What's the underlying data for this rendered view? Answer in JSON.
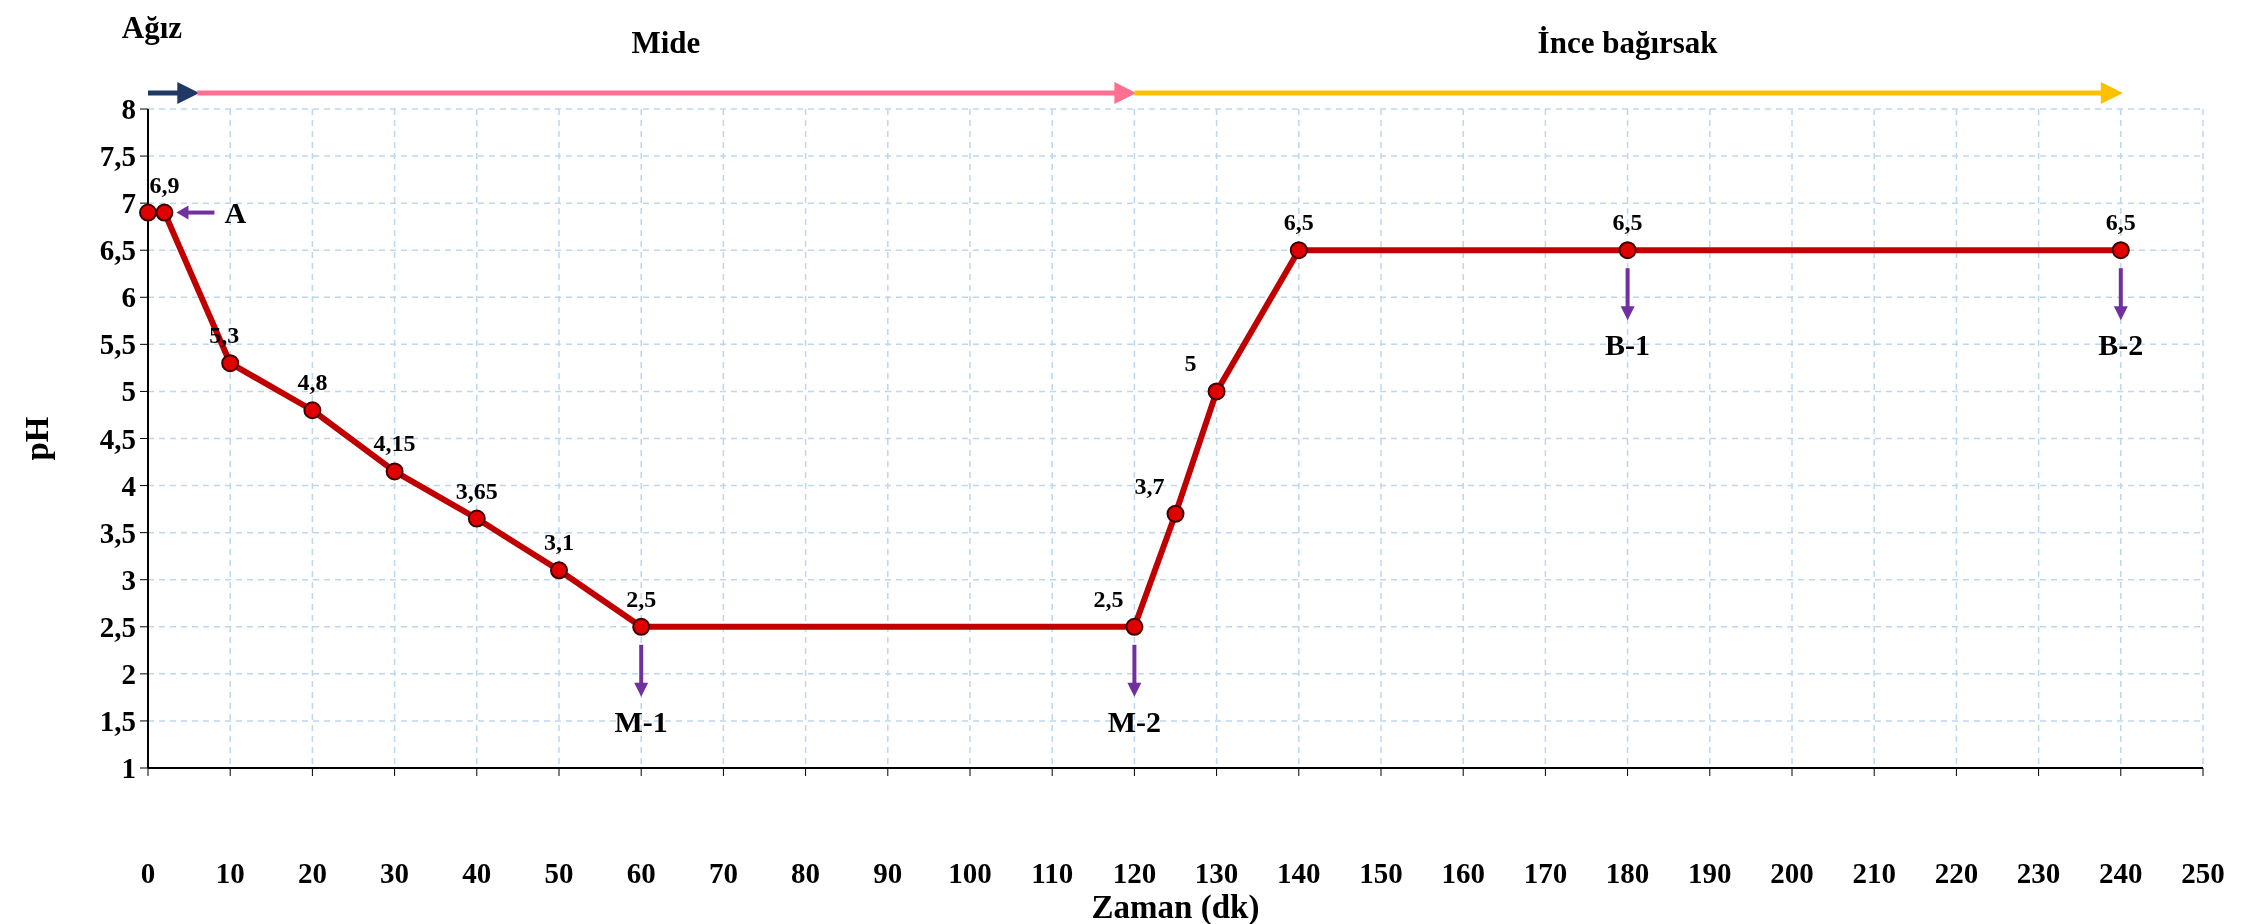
{
  "chart_data": {
    "type": "line",
    "xlabel": "Zaman (dk)",
    "ylabel": "pH",
    "x": [
      0,
      2,
      10,
      20,
      30,
      40,
      50,
      60,
      120,
      125,
      130,
      140,
      180,
      240
    ],
    "series": [
      {
        "color": "#c00000",
        "values": [
          6.9,
          6.9,
          5.3,
          4.8,
          4.15,
          3.65,
          3.1,
          2.5,
          2.5,
          3.7,
          5,
          6.5,
          6.5,
          6.5
        ],
        "value_labels": [
          null,
          "6,9",
          "5,3",
          "4,8",
          "4,15",
          "3,65",
          "3,1",
          "2,5",
          "2,5",
          "3,7",
          "5",
          "6,5",
          "6,5",
          "6,5"
        ]
      }
    ],
    "xlim": [
      0,
      250
    ],
    "xticks": [
      0,
      10,
      20,
      30,
      40,
      50,
      60,
      70,
      80,
      90,
      100,
      110,
      120,
      130,
      140,
      150,
      160,
      170,
      180,
      190,
      200,
      210,
      220,
      230,
      240,
      250
    ],
    "ylim": [
      1,
      8
    ],
    "yticks": [
      1,
      {
        "value": 1.5,
        "label": "1,5"
      },
      2,
      {
        "value": 2.5,
        "label": "2,5"
      },
      3,
      {
        "value": 3.5,
        "label": "3,5"
      },
      4,
      {
        "value": 4.5,
        "label": "4,5"
      },
      5,
      {
        "value": 5.5,
        "label": "5,5"
      },
      6,
      {
        "value": 6.5,
        "label": "6,5"
      },
      7,
      {
        "value": 7.5,
        "label": "7,5"
      },
      8
    ],
    "grid": true,
    "marker": "circle",
    "line_style": "solid",
    "annotations": [
      "Ağız",
      "Mide",
      "İnce bağırsak",
      {
        "text": "A",
        "x": 2,
        "y": 6.9
      },
      {
        "text": "M-1",
        "x": 60,
        "y": 2.5
      },
      {
        "text": "M-2",
        "x": 120,
        "y": 2.5
      },
      {
        "text": "B-1",
        "x": 180,
        "y": 6.5
      },
      {
        "text": "B-2",
        "x": 240,
        "y": 6.5
      }
    ]
  }
}
